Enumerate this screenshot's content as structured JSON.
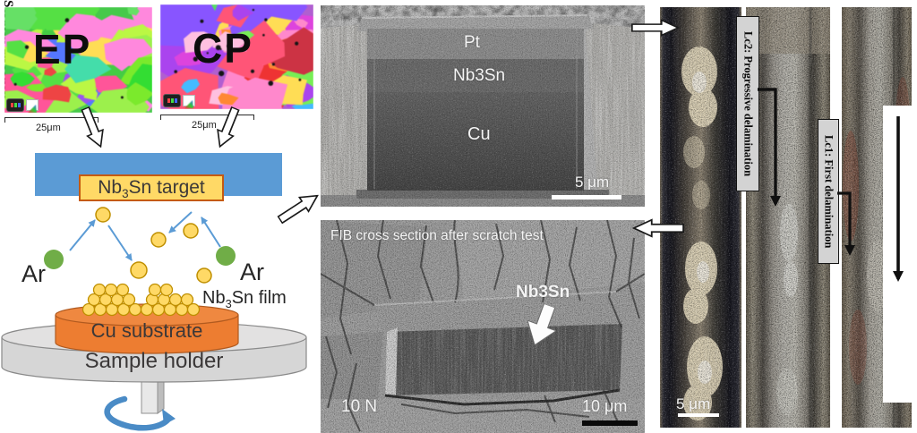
{
  "ebsd": {
    "ep_label": "EP",
    "cp_label": "CP",
    "ep_scale": "25μm",
    "cp_scale": "25μm"
  },
  "schematic": {
    "target_pre": "Nb",
    "target_sub": "3",
    "target_post": "Sn target",
    "ar_left": "Ar",
    "ar_right": "Ar",
    "film_pre": "Nb",
    "film_sub": "3",
    "film_post": "Sn film",
    "substrate_label": "Cu substrate",
    "holder_label": "Sample holder"
  },
  "sem_cross_section": {
    "layer_pt": "Pt",
    "layer_nb3sn": "Nb3Sn",
    "layer_cu": "Cu",
    "scale_label": "5 μm"
  },
  "sem_scratch": {
    "caption": "FIB cross section after scratch test",
    "arrow_label": "Nb3Sn",
    "load_label": "10 N",
    "scale_label": "10 μm"
  },
  "scratch_panel": {
    "lc2_label": "Lc2: Progressive delamination",
    "lc1_label": "Lc1: First delamination",
    "direction_label": "Scratch direction",
    "scale_label": "5 μm"
  },
  "colors": {
    "backing_plate_blue": "#5b9bd5",
    "target_yellow": "#ffd966",
    "argon_green": "#70ad47",
    "substrate_orange": "#ed7d31",
    "holder_gray": "#d9d9d9",
    "rotation_arrow_blue": "#4a8bc6"
  }
}
